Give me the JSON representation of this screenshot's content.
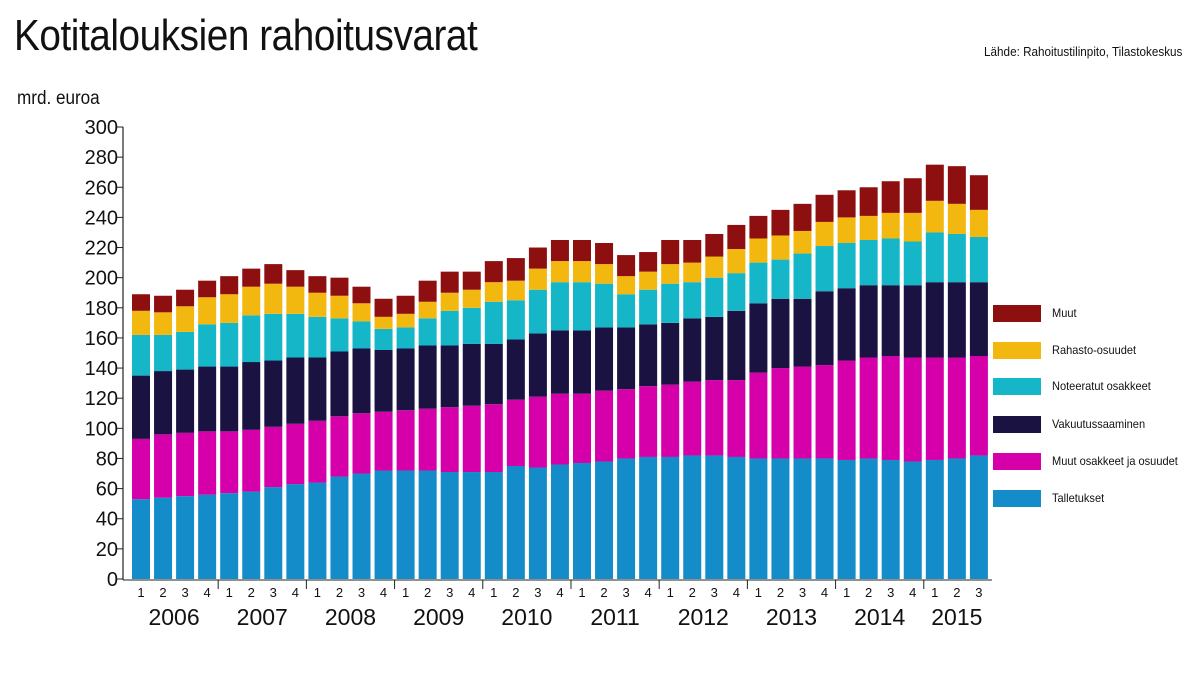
{
  "title": "Kotitalouksien rahoitusvarat",
  "source": "Lähde: Rahoitustilinpito, Tilastokeskus",
  "unit_label": "mrd. euroa",
  "colors": {
    "Talletukset": "#138cc9",
    "Muut osakkeet ja osuudet": "#d600aa",
    "Vakuutussaaminen": "#1a1240",
    "Noteeratut osakkeet": "#14b6c8",
    "Rahasto-osuudet": "#f2b80f",
    "Muut": "#8e0f10"
  },
  "legend": [
    "Muut",
    "Rahasto-osuudet",
    "Noteeratut osakkeet",
    "Vakuutussaaminen",
    "Muut osakkeet ja osuudet",
    "Talletukset"
  ],
  "chart_data": {
    "type": "bar",
    "stacked": true,
    "title": "Kotitalouksien rahoitusvarat",
    "ylabel": "mrd. euroa",
    "ylim": [
      0,
      300
    ],
    "yticks": [
      0,
      20,
      40,
      60,
      80,
      100,
      120,
      140,
      160,
      180,
      200,
      220,
      240,
      260,
      280,
      300
    ],
    "categories": [
      "1",
      "2",
      "3",
      "4",
      "1",
      "2",
      "3",
      "4",
      "1",
      "2",
      "3",
      "4",
      "1",
      "2",
      "3",
      "4",
      "1",
      "2",
      "3",
      "4",
      "1",
      "2",
      "3",
      "4",
      "1",
      "2",
      "3",
      "4",
      "1",
      "2",
      "3",
      "4",
      "1",
      "2",
      "3",
      "4",
      "1",
      "2",
      "3"
    ],
    "years": [
      {
        "label": "2006",
        "quarters": 4
      },
      {
        "label": "2007",
        "quarters": 4
      },
      {
        "label": "2008",
        "quarters": 4
      },
      {
        "label": "2009",
        "quarters": 4
      },
      {
        "label": "2010",
        "quarters": 4
      },
      {
        "label": "2011",
        "quarters": 4
      },
      {
        "label": "2012",
        "quarters": 4
      },
      {
        "label": "2013",
        "quarters": 4
      },
      {
        "label": "2014",
        "quarters": 4
      },
      {
        "label": "2015",
        "quarters": 3
      }
    ],
    "legend_position": "right",
    "grid": false,
    "series": [
      {
        "name": "Talletukset",
        "values": [
          53,
          54,
          55,
          56,
          57,
          58,
          61,
          63,
          64,
          68,
          70,
          72,
          72,
          72,
          71,
          71,
          71,
          75,
          74,
          76,
          77,
          78,
          80,
          81,
          81,
          82,
          82,
          81,
          80,
          80,
          80,
          80,
          79,
          80,
          79,
          78,
          79,
          80,
          82
        ]
      },
      {
        "name": "Muut osakkeet ja osuudet",
        "values": [
          40,
          42,
          42,
          42,
          41,
          41,
          40,
          40,
          41,
          40,
          40,
          39,
          40,
          41,
          43,
          44,
          45,
          44,
          47,
          47,
          46,
          47,
          46,
          47,
          48,
          49,
          50,
          51,
          57,
          60,
          61,
          62,
          66,
          67,
          69,
          69,
          68,
          67,
          66
        ]
      },
      {
        "name": "Vakuutussaaminen",
        "values": [
          42,
          42,
          42,
          43,
          43,
          45,
          44,
          44,
          42,
          43,
          43,
          41,
          41,
          42,
          41,
          41,
          40,
          40,
          42,
          42,
          42,
          42,
          41,
          41,
          41,
          42,
          42,
          46,
          46,
          46,
          45,
          49,
          48,
          48,
          47,
          48,
          50,
          50,
          49
        ]
      },
      {
        "name": "Noteeratut osakkeet",
        "values": [
          27,
          24,
          25,
          28,
          29,
          31,
          31,
          29,
          27,
          22,
          18,
          14,
          14,
          18,
          23,
          24,
          28,
          26,
          29,
          32,
          32,
          29,
          22,
          23,
          26,
          24,
          26,
          25,
          27,
          26,
          30,
          30,
          30,
          30,
          31,
          29,
          33,
          32,
          30
        ]
      },
      {
        "name": "Rahasto-osuudet",
        "values": [
          16,
          15,
          17,
          18,
          19,
          19,
          20,
          18,
          16,
          15,
          12,
          8,
          9,
          11,
          12,
          12,
          13,
          13,
          14,
          14,
          14,
          13,
          12,
          12,
          13,
          13,
          14,
          16,
          16,
          16,
          15,
          16,
          17,
          16,
          17,
          19,
          21,
          20,
          18
        ]
      },
      {
        "name": "Muut",
        "values": [
          11,
          11,
          11,
          11,
          12,
          12,
          13,
          11,
          11,
          12,
          11,
          12,
          12,
          14,
          14,
          12,
          14,
          15,
          14,
          14,
          14,
          14,
          14,
          13,
          16,
          15,
          15,
          16,
          15,
          17,
          18,
          18,
          18,
          19,
          21,
          23,
          24,
          25,
          23
        ]
      }
    ]
  }
}
